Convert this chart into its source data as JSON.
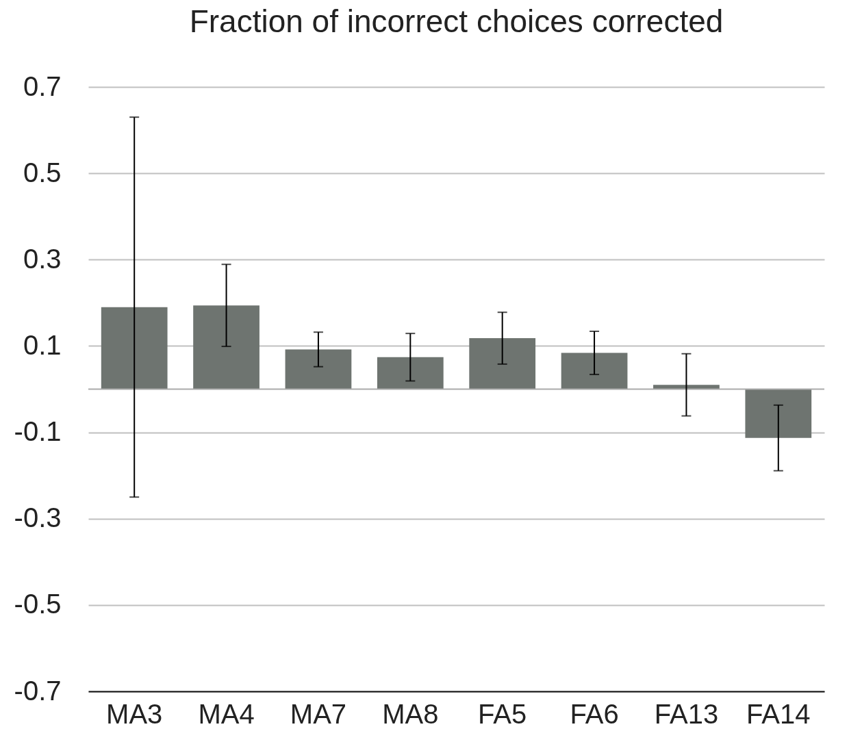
{
  "chart_data": {
    "type": "bar",
    "title": "Fraction of incorrect choices corrected",
    "categories": [
      "MA3",
      "MA4",
      "MA7",
      "MA8",
      "FA5",
      "FA6",
      "FA13",
      "FA14"
    ],
    "values": [
      0.19,
      0.194,
      0.092,
      0.074,
      0.118,
      0.084,
      0.01,
      -0.113
    ],
    "errors": [
      0.44,
      0.095,
      0.04,
      0.055,
      0.06,
      0.05,
      0.072,
      0.076
    ],
    "color": "#6e7470",
    "ylim": [
      -0.7,
      0.7
    ],
    "yticks": [
      -0.7,
      -0.5,
      -0.3,
      -0.1,
      0.1,
      0.3,
      0.5,
      0.7
    ],
    "ref_lines": [
      {
        "axis": "y",
        "value": 0,
        "color": "#aaaaaa"
      }
    ],
    "grid": "y"
  }
}
